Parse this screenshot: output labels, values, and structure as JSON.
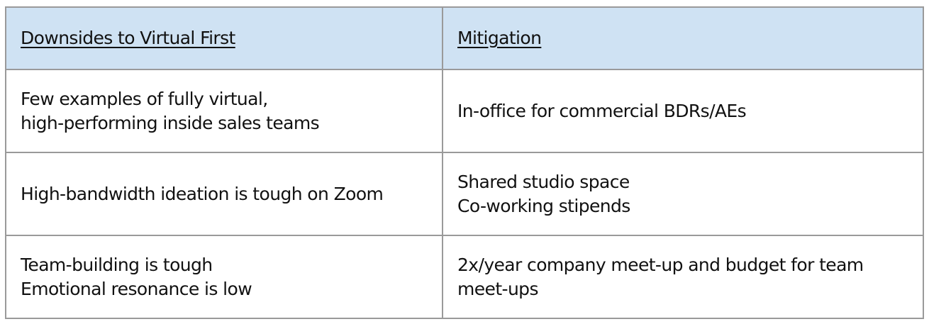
{
  "table": {
    "headers": [
      "Downsides to Virtual First",
      "Mitigation"
    ],
    "rows": [
      {
        "downside": [
          "Few examples of fully virtual,",
          "high-performing inside sales teams"
        ],
        "mitigation": [
          "In-office for commercial BDRs/AEs"
        ]
      },
      {
        "downside": [
          "High-bandwidth ideation is tough on Zoom"
        ],
        "mitigation": [
          "Shared studio space",
          "Co-working stipends"
        ]
      },
      {
        "downside": [
          "Team-building is tough",
          "Emotional resonance is low"
        ],
        "mitigation": [
          "2x/year company meet-up and budget for team",
          "meet-ups"
        ]
      }
    ]
  },
  "colors": {
    "header_bg": "#cfe2f3",
    "border": "#9a9a9a"
  }
}
